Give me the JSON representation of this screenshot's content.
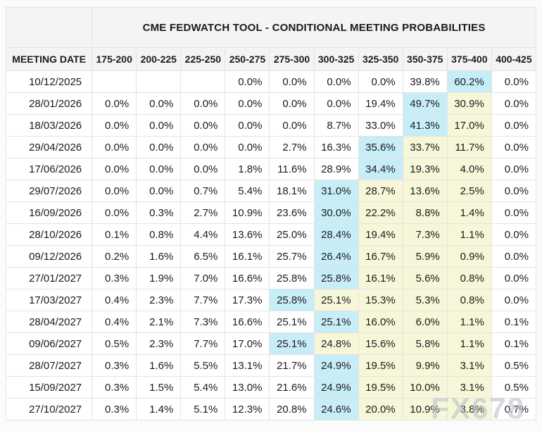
{
  "watermark": "FX678",
  "colors": {
    "cyan_highlight": "#c7edf7",
    "yellow_highlight": "#f6f6d9",
    "header_bg": "#f4f4f4",
    "border": "#e3e3e3",
    "text": "#1b1b1b",
    "watermark": "#b6bdc7"
  },
  "chart_data": {
    "type": "table",
    "title": "CME FEDWATCH TOOL - CONDITIONAL MEETING PROBABILITIES",
    "columns": [
      "MEETING DATE",
      "175-200",
      "200-225",
      "225-250",
      "250-275",
      "275-300",
      "300-325",
      "325-350",
      "350-375",
      "375-400",
      "400-425"
    ],
    "highlight_note": "cyan = highest probability cell in row, yellow = cells right of the peak",
    "rows": [
      {
        "date": "10/12/2025",
        "values": [
          "",
          "",
          "",
          "0.0%",
          "0.0%",
          "0.0%",
          "0.0%",
          "39.8%",
          "60.2%",
          "0.0%"
        ],
        "cyan": 8,
        "yellow": []
      },
      {
        "date": "28/01/2026",
        "values": [
          "0.0%",
          "0.0%",
          "0.0%",
          "0.0%",
          "0.0%",
          "0.0%",
          "19.4%",
          "49.7%",
          "30.9%",
          "0.0%"
        ],
        "cyan": 7,
        "yellow": [
          8
        ]
      },
      {
        "date": "18/03/2026",
        "values": [
          "0.0%",
          "0.0%",
          "0.0%",
          "0.0%",
          "0.0%",
          "8.7%",
          "33.0%",
          "41.3%",
          "17.0%",
          "0.0%"
        ],
        "cyan": 7,
        "yellow": [
          8
        ]
      },
      {
        "date": "29/04/2026",
        "values": [
          "0.0%",
          "0.0%",
          "0.0%",
          "0.0%",
          "2.7%",
          "16.3%",
          "35.6%",
          "33.7%",
          "11.7%",
          "0.0%"
        ],
        "cyan": 6,
        "yellow": [
          7,
          8
        ]
      },
      {
        "date": "17/06/2026",
        "values": [
          "0.0%",
          "0.0%",
          "0.0%",
          "1.8%",
          "11.6%",
          "28.9%",
          "34.4%",
          "19.3%",
          "4.0%",
          "0.0%"
        ],
        "cyan": 6,
        "yellow": [
          7,
          8
        ]
      },
      {
        "date": "29/07/2026",
        "values": [
          "0.0%",
          "0.0%",
          "0.7%",
          "5.4%",
          "18.1%",
          "31.0%",
          "28.7%",
          "13.6%",
          "2.5%",
          "0.0%"
        ],
        "cyan": 5,
        "yellow": [
          6,
          7,
          8
        ]
      },
      {
        "date": "16/09/2026",
        "values": [
          "0.0%",
          "0.3%",
          "2.7%",
          "10.9%",
          "23.6%",
          "30.0%",
          "22.2%",
          "8.8%",
          "1.4%",
          "0.0%"
        ],
        "cyan": 5,
        "yellow": [
          6,
          7,
          8
        ]
      },
      {
        "date": "28/10/2026",
        "values": [
          "0.1%",
          "0.8%",
          "4.4%",
          "13.6%",
          "25.0%",
          "28.4%",
          "19.4%",
          "7.3%",
          "1.1%",
          "0.0%"
        ],
        "cyan": 5,
        "yellow": [
          6,
          7,
          8
        ]
      },
      {
        "date": "09/12/2026",
        "values": [
          "0.2%",
          "1.6%",
          "6.5%",
          "16.1%",
          "25.7%",
          "26.4%",
          "16.7%",
          "5.9%",
          "0.9%",
          "0.0%"
        ],
        "cyan": 5,
        "yellow": [
          6,
          7,
          8
        ]
      },
      {
        "date": "27/01/2027",
        "values": [
          "0.3%",
          "1.9%",
          "7.0%",
          "16.6%",
          "25.8%",
          "25.8%",
          "16.1%",
          "5.6%",
          "0.8%",
          "0.0%"
        ],
        "cyan": 5,
        "yellow": [
          6,
          7,
          8
        ]
      },
      {
        "date": "17/03/2027",
        "values": [
          "0.4%",
          "2.3%",
          "7.7%",
          "17.3%",
          "25.8%",
          "25.1%",
          "15.3%",
          "5.3%",
          "0.8%",
          "0.0%"
        ],
        "cyan": 4,
        "yellow": [
          5,
          6,
          7,
          8
        ]
      },
      {
        "date": "28/04/2027",
        "values": [
          "0.4%",
          "2.1%",
          "7.3%",
          "16.6%",
          "25.1%",
          "25.1%",
          "16.0%",
          "6.0%",
          "1.1%",
          "0.1%"
        ],
        "cyan": 5,
        "yellow": [
          6,
          7,
          8
        ]
      },
      {
        "date": "09/06/2027",
        "values": [
          "0.5%",
          "2.3%",
          "7.7%",
          "17.0%",
          "25.1%",
          "24.8%",
          "15.6%",
          "5.8%",
          "1.1%",
          "0.1%"
        ],
        "cyan": 4,
        "yellow": [
          5,
          6,
          7,
          8
        ]
      },
      {
        "date": "28/07/2027",
        "values": [
          "0.3%",
          "1.6%",
          "5.5%",
          "13.1%",
          "21.7%",
          "24.9%",
          "19.5%",
          "9.9%",
          "3.1%",
          "0.5%"
        ],
        "cyan": 5,
        "yellow": [
          6,
          7,
          8
        ]
      },
      {
        "date": "15/09/2027",
        "values": [
          "0.3%",
          "1.5%",
          "5.4%",
          "13.0%",
          "21.6%",
          "24.9%",
          "19.5%",
          "10.0%",
          "3.1%",
          "0.5%"
        ],
        "cyan": 5,
        "yellow": [
          6,
          7,
          8
        ]
      },
      {
        "date": "27/10/2027",
        "values": [
          "0.3%",
          "1.4%",
          "5.1%",
          "12.3%",
          "20.8%",
          "24.6%",
          "20.0%",
          "10.9%",
          "3.8%",
          "0.7%"
        ],
        "cyan": 5,
        "yellow": [
          6,
          7,
          8
        ]
      }
    ]
  }
}
